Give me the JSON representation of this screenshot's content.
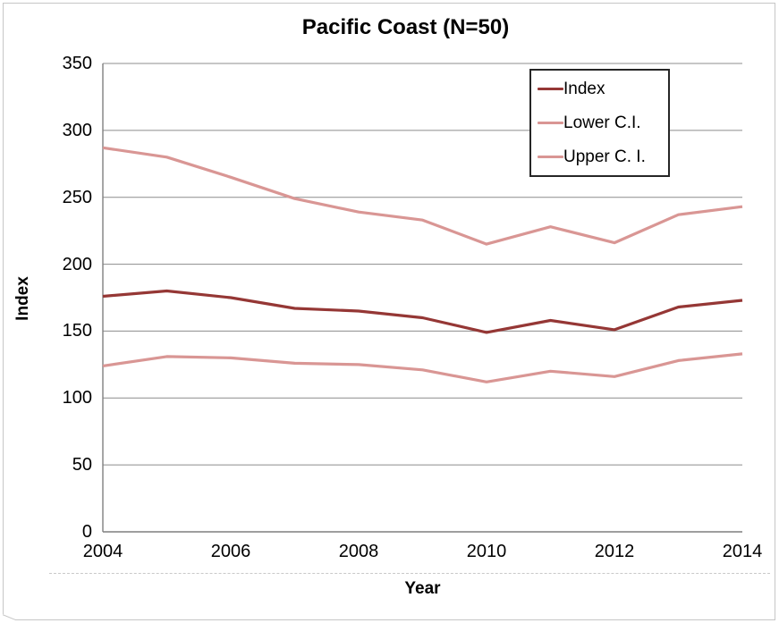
{
  "chart_data": {
    "type": "line",
    "title": "Pacific Coast (N=50)",
    "xlabel": "Year",
    "ylabel": "Index",
    "x": [
      2004,
      2005,
      2006,
      2007,
      2008,
      2009,
      2010,
      2011,
      2012,
      2013,
      2014
    ],
    "x_tick_labels": [
      2004,
      2006,
      2008,
      2010,
      2012,
      2014
    ],
    "y_ticks": [
      0,
      50,
      100,
      150,
      200,
      250,
      300,
      350
    ],
    "ylim": [
      0,
      350
    ],
    "xlim": [
      2004,
      2014
    ],
    "grid": "horizontal",
    "legend_position": "inside-top-right",
    "series": [
      {
        "name": "Index",
        "color": "#953735",
        "values": [
          176,
          180,
          175,
          167,
          165,
          160,
          149,
          158,
          151,
          168,
          173
        ]
      },
      {
        "name": "Lower C.I.",
        "color": "#D99694",
        "values": [
          124,
          131,
          130,
          126,
          125,
          121,
          112,
          120,
          116,
          128,
          133
        ]
      },
      {
        "name": "Upper C. I.",
        "color": "#D99694",
        "values": [
          287,
          280,
          265,
          249,
          239,
          233,
          215,
          228,
          216,
          237,
          243
        ]
      }
    ],
    "style": {
      "gridline_color": "#8c8c8c",
      "axis_color": "#7f7f7f",
      "text_color": "#000000",
      "line_width": 3.2
    }
  }
}
